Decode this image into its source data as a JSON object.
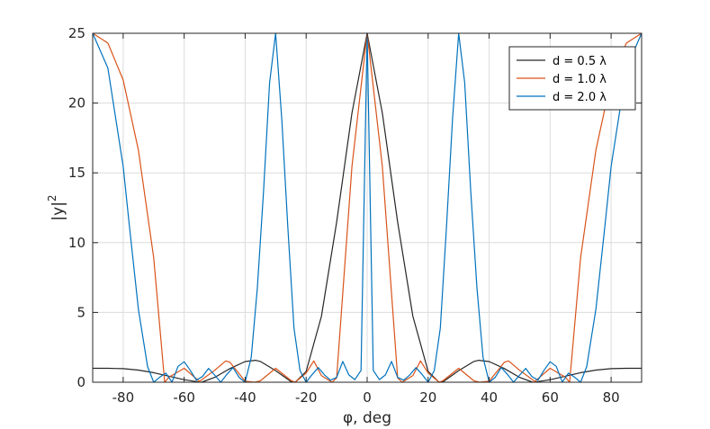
{
  "chart_data": {
    "type": "line",
    "xlabel": "φ, deg",
    "ylabel": "|y|",
    "ylabel_superscript": "2",
    "xlim": [
      -90,
      90
    ],
    "ylim": [
      0,
      25
    ],
    "xticks": [
      -80,
      -60,
      -40,
      -20,
      0,
      20,
      40,
      60,
      80
    ],
    "yticks": [
      0,
      5,
      10,
      15,
      20,
      25
    ],
    "grid": true,
    "legend_position": "top-right",
    "series": [
      {
        "name": "d = 0.5 λ",
        "color": "#262626",
        "x": [
          -90,
          -85,
          -80,
          -75,
          -70,
          -65,
          -60,
          -55,
          -54.3,
          -50,
          -45,
          -40,
          -36.6,
          -35,
          -30,
          -25,
          -23.6,
          -20,
          -15,
          -10,
          -5,
          0,
          5,
          10,
          15,
          20,
          23.6,
          25,
          30,
          35,
          36.6,
          40,
          45,
          50,
          54.3,
          55,
          60,
          65,
          70,
          75,
          80,
          85,
          90
        ],
        "y": [
          1.0,
          1.0,
          0.97,
          0.87,
          0.68,
          0.43,
          0.18,
          0.01,
          0.0,
          0.35,
          0.98,
          1.48,
          1.57,
          1.49,
          0.83,
          0.05,
          0.0,
          0.77,
          4.73,
          11.47,
          19.28,
          25.0,
          19.28,
          11.47,
          4.73,
          0.77,
          0.0,
          0.05,
          0.83,
          1.49,
          1.57,
          1.48,
          0.98,
          0.35,
          0.0,
          0.01,
          0.18,
          0.43,
          0.68,
          0.87,
          0.97,
          1.0,
          1.0
        ]
      },
      {
        "name": "d = 1.0 λ",
        "color": "#d95319",
        "x": [
          -90,
          -85,
          -80,
          -75,
          -70,
          -66.4,
          -65,
          -60,
          -55,
          -50,
          -46.4,
          -45,
          -40,
          -36.9,
          -35,
          -30,
          -25,
          -23.6,
          -20,
          -17.5,
          -15,
          -11.5,
          -10,
          -5,
          0,
          5,
          10,
          11.5,
          15,
          17.5,
          20,
          23.6,
          25,
          30,
          35,
          36.9,
          40,
          45,
          46.4,
          50,
          55,
          60,
          65,
          66.4,
          70,
          75,
          80,
          85,
          90
        ],
        "y": [
          25.0,
          24.3,
          21.65,
          16.63,
          8.92,
          0.0,
          0.36,
          1.0,
          0.06,
          0.86,
          1.53,
          1.44,
          0.07,
          0.0,
          0.1,
          1.0,
          0.13,
          0.0,
          0.66,
          1.53,
          0.48,
          0.0,
          0.31,
          15.45,
          25.0,
          15.45,
          0.31,
          0.0,
          0.48,
          1.53,
          0.66,
          0.0,
          0.13,
          1.0,
          0.1,
          0.0,
          0.07,
          1.44,
          1.53,
          0.86,
          0.06,
          1.0,
          0.36,
          0.0,
          8.92,
          16.63,
          21.65,
          24.3,
          25.0
        ]
      },
      {
        "name": "d = 2.0 λ",
        "color": "#0072bd",
        "x": [
          -90,
          -85,
          -80,
          -78,
          -75,
          -72,
          -70,
          -68,
          -66,
          -64,
          -62,
          -60,
          -58,
          -56,
          -54,
          -52,
          -50,
          -48,
          -46,
          -44,
          -42,
          -40,
          -38,
          -36,
          -34,
          -32,
          -30,
          -28,
          -26,
          -24,
          -22,
          -20,
          -18,
          -16,
          -14,
          -12,
          -10,
          -8,
          -6,
          -4,
          -2,
          0,
          2,
          4,
          6,
          8,
          10,
          12,
          14,
          16,
          18,
          20,
          22,
          24,
          26,
          28,
          30,
          32,
          34,
          36,
          38,
          40,
          42,
          44,
          46,
          48,
          50,
          52,
          54,
          56,
          58,
          60,
          62,
          64,
          66,
          68,
          70,
          72,
          75,
          78,
          80,
          85,
          90
        ],
        "y": [
          25.0,
          22.5,
          15.45,
          11.25,
          5.23,
          1.12,
          0.0,
          0.37,
          0.65,
          0.01,
          1.14,
          1.47,
          0.86,
          0.15,
          0.41,
          0.99,
          0.51,
          0.0,
          0.56,
          1.05,
          0.35,
          0.0,
          1.78,
          6.76,
          13.61,
          21.46,
          25.0,
          18.87,
          11.06,
          3.88,
          0.84,
          0.0,
          0.56,
          1.05,
          0.52,
          0.15,
          0.34,
          1.49,
          0.52,
          0.19,
          0.85,
          25.0,
          0.85,
          0.19,
          0.52,
          1.49,
          0.34,
          0.15,
          0.52,
          1.05,
          0.56,
          0.0,
          0.84,
          3.88,
          11.06,
          18.87,
          25.0,
          21.46,
          13.61,
          6.76,
          1.78,
          0.0,
          0.35,
          1.05,
          0.56,
          0.0,
          0.51,
          0.99,
          0.41,
          0.15,
          0.86,
          1.47,
          1.14,
          0.01,
          0.65,
          0.37,
          0.0,
          1.12,
          5.23,
          11.25,
          15.45,
          22.5,
          25.0
        ]
      }
    ]
  }
}
